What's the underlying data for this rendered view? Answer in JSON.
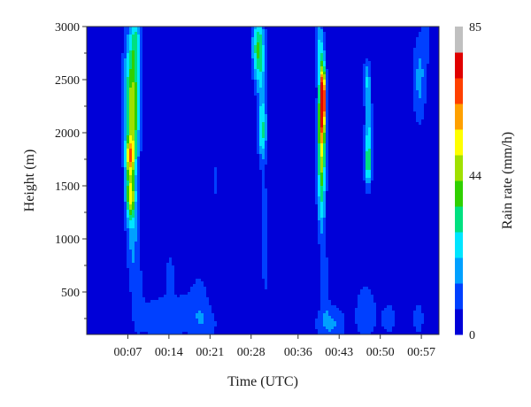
{
  "chart_data": {
    "type": "heatmap",
    "title": "",
    "xlabel": "Time (UTC)",
    "ylabel": "Height (m)",
    "colorbar_label": "Rain rate (mm/h)",
    "x_ticks": [
      "00:07",
      "00:14",
      "00:21",
      "00:28",
      "00:36",
      "00:43",
      "00:50",
      "00:57"
    ],
    "x_range_minutes": [
      0,
      60
    ],
    "x_tick_minutes": [
      7,
      14,
      21,
      28,
      36,
      43,
      50,
      57
    ],
    "y_ticks": [
      500,
      1000,
      1500,
      2000,
      2500,
      3000
    ],
    "ylim": [
      100,
      3000
    ],
    "colorbar_ticks": [
      0,
      44,
      85
    ],
    "zlim": [
      0,
      85
    ],
    "grid": false,
    "colormap": [
      "#0000d8",
      "#0040ff",
      "#00a0ff",
      "#00e5ff",
      "#00e080",
      "#30d000",
      "#a0e000",
      "#ffff00",
      "#ffa000",
      "#ff4000",
      "#e00000",
      "#c0c0c0"
    ],
    "background_value": 2,
    "rain_cells": [
      {
        "t": 7.6,
        "h": 2500,
        "st": 0.9,
        "sh": 400,
        "v": 26
      },
      {
        "t": 7.9,
        "h": 2150,
        "st": 0.8,
        "sh": 300,
        "v": 32
      },
      {
        "t": 7.4,
        "h": 1770,
        "st": 0.6,
        "sh": 140,
        "v": 50
      },
      {
        "t": 7.5,
        "h": 1400,
        "st": 0.55,
        "sh": 150,
        "v": 46
      },
      {
        "t": 8.4,
        "h": 2850,
        "st": 0.6,
        "sh": 200,
        "v": 20
      },
      {
        "t": 7.8,
        "h": 1050,
        "st": 0.8,
        "sh": 300,
        "v": 16
      },
      {
        "t": 8.6,
        "h": 450,
        "st": 0.7,
        "sh": 250,
        "v": 11
      },
      {
        "t": 11.0,
        "h": 250,
        "st": 1.5,
        "sh": 150,
        "v": 8
      },
      {
        "t": 14.2,
        "h": 680,
        "st": 0.6,
        "sh": 150,
        "v": 9
      },
      {
        "t": 13.5,
        "h": 250,
        "st": 1.6,
        "sh": 150,
        "v": 9
      },
      {
        "t": 16.5,
        "h": 300,
        "st": 1.5,
        "sh": 160,
        "v": 8
      },
      {
        "t": 19.2,
        "h": 400,
        "st": 1.2,
        "sh": 230,
        "v": 9
      },
      {
        "t": 20.5,
        "h": 200,
        "st": 1.6,
        "sh": 120,
        "v": 8
      },
      {
        "t": 22.0,
        "h": 1550,
        "st": 0.4,
        "sh": 200,
        "v": 7
      },
      {
        "t": 29.2,
        "h": 2800,
        "st": 0.7,
        "sh": 220,
        "v": 36
      },
      {
        "t": 29.9,
        "h": 2000,
        "st": 0.5,
        "sh": 180,
        "v": 26
      },
      {
        "t": 29.9,
        "h": 2400,
        "st": 0.6,
        "sh": 300,
        "v": 14
      },
      {
        "t": 30.2,
        "h": 1200,
        "st": 0.4,
        "sh": 300,
        "v": 12
      },
      {
        "t": 30.6,
        "h": 650,
        "st": 0.5,
        "sh": 150,
        "v": 7
      },
      {
        "t": 40.2,
        "h": 2350,
        "st": 0.35,
        "sh": 200,
        "v": 80
      },
      {
        "t": 40.0,
        "h": 2050,
        "st": 0.45,
        "sh": 260,
        "v": 46
      },
      {
        "t": 39.7,
        "h": 2800,
        "st": 0.5,
        "sh": 220,
        "v": 22
      },
      {
        "t": 40.0,
        "h": 1650,
        "st": 0.5,
        "sh": 220,
        "v": 28
      },
      {
        "t": 40.0,
        "h": 1250,
        "st": 0.5,
        "sh": 220,
        "v": 18
      },
      {
        "t": 40.6,
        "h": 600,
        "st": 0.5,
        "sh": 200,
        "v": 13
      },
      {
        "t": 41.5,
        "h": 200,
        "st": 1.8,
        "sh": 130,
        "v": 15
      },
      {
        "t": 47.7,
        "h": 2500,
        "st": 0.45,
        "sh": 130,
        "v": 18
      },
      {
        "t": 48.0,
        "h": 1950,
        "st": 0.45,
        "sh": 300,
        "v": 24
      },
      {
        "t": 47.9,
        "h": 1700,
        "st": 0.4,
        "sh": 120,
        "v": 22
      },
      {
        "t": 47.5,
        "h": 300,
        "st": 1.3,
        "sh": 200,
        "v": 12
      },
      {
        "t": 51.5,
        "h": 250,
        "st": 1.2,
        "sh": 150,
        "v": 8
      },
      {
        "t": 56.7,
        "h": 2500,
        "st": 0.8,
        "sh": 300,
        "v": 16
      },
      {
        "t": 57.8,
        "h": 2850,
        "st": 0.5,
        "sh": 150,
        "v": 9
      },
      {
        "t": 56.5,
        "h": 250,
        "st": 1.0,
        "sh": 150,
        "v": 8
      }
    ]
  }
}
